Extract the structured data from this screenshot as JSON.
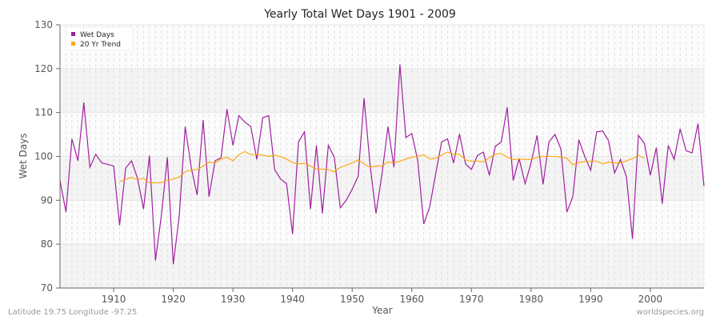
{
  "chart_data": {
    "type": "line",
    "title": "Yearly Total Wet Days 1901 - 2009",
    "xlabel": "Year",
    "ylabel": "Wet Days",
    "xlim": [
      1901,
      2009
    ],
    "ylim": [
      70,
      130
    ],
    "xticks": [
      1910,
      1920,
      1930,
      1940,
      1950,
      1960,
      1970,
      1980,
      1990,
      2000
    ],
    "yticks": [
      70,
      80,
      90,
      100,
      110,
      120,
      130
    ],
    "grid": true,
    "legend_position": "top-left",
    "series": [
      {
        "name": "Wet Days",
        "color": "#a020a0",
        "x_start": 1901,
        "values": [
          94.5,
          87.3,
          104,
          99,
          112.3,
          97.5,
          100.5,
          98.5,
          98.2,
          97.8,
          84.3,
          97.3,
          99,
          95,
          88,
          100.2,
          76.3,
          86.5,
          99.8,
          75.4,
          86.5,
          106.8,
          97.5,
          91.2,
          108.3,
          90.8,
          99,
          99.7,
          110.8,
          102.5,
          109.3,
          107.8,
          106.8,
          99.3,
          108.8,
          109.3,
          97,
          94.8,
          93.8,
          82.3,
          103.3,
          105.6,
          88,
          102.5,
          87,
          102.5,
          99.8,
          88.3,
          90,
          92.5,
          95.5,
          113.3,
          98,
          87,
          96,
          106.8,
          97.5,
          121,
          104.3,
          105.2,
          99,
          84.6,
          88.5,
          96,
          103.3,
          104,
          98.5,
          105.1,
          98.3,
          97,
          100.2,
          101,
          95.7,
          102.3,
          103.3,
          111.2,
          94.5,
          99.5,
          93.8,
          98.5,
          104.8,
          93.6,
          103.3,
          105,
          101.7,
          87.3,
          90.8,
          103.8,
          100,
          96.8,
          105.6,
          105.8,
          103.6,
          96.2,
          99.3,
          95.3,
          81.2,
          104.8,
          103,
          95.7,
          102,
          89.2,
          102.5,
          99.3,
          106.3,
          101.3,
          100.8,
          107.5,
          93.2
        ]
      },
      {
        "name": "20 Yr Trend",
        "color": "#ffa500",
        "x_start": 1911,
        "values": [
          94.2,
          94.8,
          95.2,
          94.7,
          95.0,
          94.0,
          94.0,
          94.0,
          94.6,
          94.8,
          95.3,
          96.5,
          96.9,
          97.0,
          97.8,
          98.7,
          98.5,
          99.4,
          99.8,
          99.0,
          100.4,
          101.1,
          100.4,
          100.5,
          100.3,
          100.0,
          100.3,
          99.9,
          99.4,
          98.6,
          98.3,
          98.4,
          97.8,
          97.1,
          97.1,
          97.0,
          96.5,
          97.5,
          98.0,
          98.5,
          99.2,
          98.3,
          97.5,
          97.8,
          97.8,
          98.7,
          98.6,
          98.9,
          99.4,
          99.8,
          100.0,
          100.4,
          99.4,
          99.6,
          100.3,
          101.0,
          100.5,
          100.5,
          99.2,
          98.9,
          98.9,
          98.7,
          99.7,
          100.5,
          100.7,
          99.8,
          99.3,
          99.4,
          99.3,
          99.3,
          99.8,
          100.0,
          100.0,
          100.0,
          99.8,
          99.6,
          98.1,
          98.6,
          98.8,
          98.9,
          98.9,
          98.3,
          98.7,
          98.5,
          98.5,
          99.0,
          99.5,
          100.2,
          99.6
        ]
      }
    ]
  },
  "footer": {
    "location": "Latitude 19.75 Longitude -97.25",
    "source": "worldspecies.org"
  }
}
